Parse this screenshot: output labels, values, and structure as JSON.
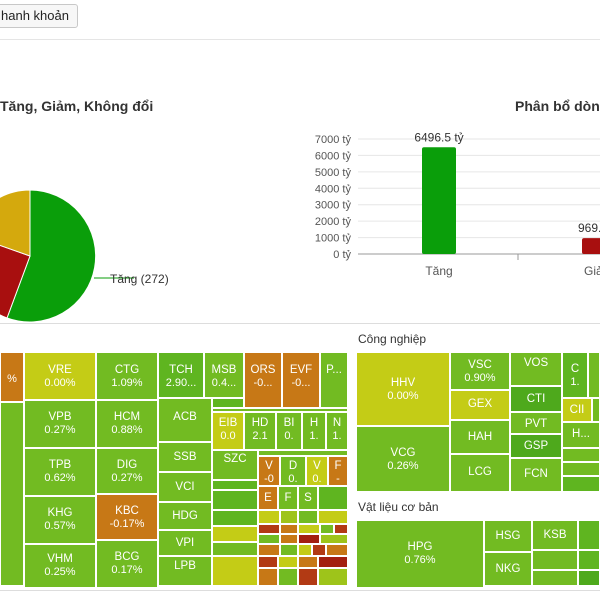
{
  "toolbar": {
    "liquidity_button": "hanh khoản"
  },
  "pie": {
    "title": "Tăng, Giảm, Không đổi",
    "label_up": "Tăng (272)",
    "colors": {
      "up": "#0a9e0a",
      "down": "#a80f0f",
      "flat": "#d4a90d"
    }
  },
  "bar": {
    "title": "Phân bổ dòng",
    "y_ticks": [
      "7000 tỷ",
      "6000 tỷ",
      "5000 tỷ",
      "4000 tỷ",
      "3000 tỷ",
      "2000 tỷ",
      "1000 tỷ",
      "0 tỷ"
    ],
    "value_up": "6496.5 tỷ",
    "value_down": "969.",
    "cat_up": "Tăng",
    "cat_down": "Giả"
  },
  "chart_data": {
    "type": "bar",
    "categories": [
      "Tăng",
      "Giả"
    ],
    "values": [
      6496.5,
      969
    ],
    "ylim": [
      0,
      7000
    ],
    "colors": [
      "#0a9e0a",
      "#a80f0f"
    ]
  },
  "treemap": {
    "group_industrial": "Công nghiệp",
    "group_materials": "Vật liệu cơ bản",
    "cells": {
      "vre": {
        "t": "VRE",
        "p": "0.00%"
      },
      "ctg": {
        "t": "CTG",
        "p": "1.09%"
      },
      "tch": {
        "t": "TCH",
        "p": "2.90..."
      },
      "msb": {
        "t": "MSB",
        "p": "0.4..."
      },
      "ors": {
        "t": "ORS",
        "p": "-0..."
      },
      "evf": {
        "t": "EVF",
        "p": "-0..."
      },
      "p1": {
        "t": "P...",
        "p": ""
      },
      "vpb": {
        "t": "VPB",
        "p": "0.27%"
      },
      "hcm": {
        "t": "HCM",
        "p": "0.88%"
      },
      "acb": {
        "t": "ACB",
        "p": ""
      },
      "tpb": {
        "t": "TPB",
        "p": "0.62%"
      },
      "dig": {
        "t": "DIG",
        "p": "0.27%"
      },
      "ssb": {
        "t": "SSB",
        "p": ""
      },
      "eib": {
        "t": "EIB",
        "p": "0.0"
      },
      "hd": {
        "t": "HD",
        "p": "2.1"
      },
      "bi": {
        "t": "BI",
        "p": "0."
      },
      "h1": {
        "t": "H",
        "p": "1."
      },
      "n1": {
        "t": "N",
        "p": "1."
      },
      "szc": {
        "t": "SZC",
        "p": ""
      },
      "vci": {
        "t": "VCI",
        "p": ""
      },
      "v1": {
        "t": "V",
        "p": "-0"
      },
      "d1": {
        "t": "D",
        "p": "0."
      },
      "v2": {
        "t": "V",
        "p": "0."
      },
      "f1": {
        "t": "F",
        "p": "-"
      },
      "khg": {
        "t": "KHG",
        "p": "0.57%"
      },
      "kbc": {
        "t": "KBC",
        "p": "-0.17%"
      },
      "hdg": {
        "t": "HDG",
        "p": ""
      },
      "e1": {
        "t": "E",
        "p": ""
      },
      "f2": {
        "t": "F",
        "p": ""
      },
      "s1": {
        "t": "S",
        "p": ""
      },
      "vpi": {
        "t": "VPI",
        "p": ""
      },
      "vhm": {
        "t": "VHM",
        "p": "0.25%"
      },
      "bcg": {
        "t": "BCG",
        "p": "0.17%"
      },
      "lpb": {
        "t": "LPB",
        "p": ""
      },
      "left_pct": {
        "t": "",
        "p": "%"
      },
      "hhv": {
        "t": "HHV",
        "p": "0.00%"
      },
      "vsc": {
        "t": "VSC",
        "p": "0.90%"
      },
      "vos": {
        "t": "VOS",
        "p": ""
      },
      "c1": {
        "t": "C",
        "p": "1."
      },
      "gex": {
        "t": "GEX",
        "p": ""
      },
      "cti": {
        "t": "CTI",
        "p": ""
      },
      "cii": {
        "t": "CII",
        "p": ""
      },
      "vcg": {
        "t": "VCG",
        "p": "0.26%"
      },
      "hah": {
        "t": "HAH",
        "p": ""
      },
      "pvt": {
        "t": "PVT",
        "p": ""
      },
      "h2": {
        "t": "H...",
        "p": ""
      },
      "gsp": {
        "t": "GSP",
        "p": ""
      },
      "lcg": {
        "t": "LCG",
        "p": ""
      },
      "fcn": {
        "t": "FCN",
        "p": ""
      },
      "hpg": {
        "t": "HPG",
        "p": "0.76%"
      },
      "hsg": {
        "t": "HSG",
        "p": ""
      },
      "ksb": {
        "t": "KSB",
        "p": ""
      },
      "nkg": {
        "t": "NKG",
        "p": ""
      }
    }
  }
}
